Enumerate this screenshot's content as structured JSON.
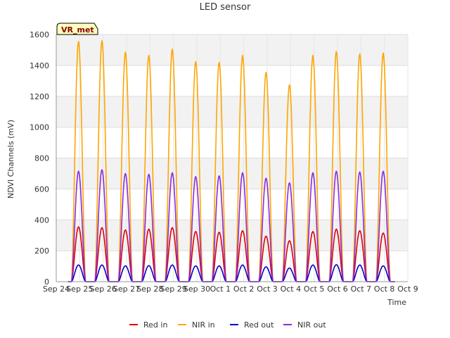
{
  "chart_data": {
    "type": "line",
    "title": "LED sensor",
    "xlabel": "Time",
    "ylabel": "NDVI Channels (mV)",
    "ylim": [
      0,
      1600
    ],
    "yticks": [
      0,
      200,
      400,
      600,
      800,
      1000,
      1200,
      1400,
      1600
    ],
    "xticks": [
      "Sep 24",
      "Sep 25",
      "Sep 26",
      "Sep 27",
      "Sep 28",
      "Sep 29",
      "Sep 30",
      "Oct 1",
      "Oct 2",
      "Oct 3",
      "Oct 4",
      "Oct 5",
      "Oct 6",
      "Oct 7",
      "Oct 8",
      "Oct 9"
    ],
    "xlim": [
      "2024-09-24",
      "2024-10-09"
    ],
    "grid": true,
    "legend_position": "bottom",
    "badge": "VR_met",
    "peak_dates": [
      "2024-09-25",
      "2024-09-26",
      "2024-09-27",
      "2024-09-28",
      "2024-09-29",
      "2024-09-30",
      "2024-10-01",
      "2024-10-02",
      "2024-10-03",
      "2024-10-04",
      "2024-10-05",
      "2024-10-06",
      "2024-10-07",
      "2024-10-08"
    ],
    "series": [
      {
        "name": "Red in",
        "color": "#dd0000",
        "peaks": [
          355,
          350,
          335,
          340,
          350,
          325,
          320,
          330,
          295,
          265,
          325,
          340,
          330,
          315
        ]
      },
      {
        "name": "NIR in",
        "color": "#ffa500",
        "peaks": [
          1555,
          1560,
          1485,
          1465,
          1505,
          1425,
          1420,
          1465,
          1355,
          1275,
          1465,
          1490,
          1475,
          1480
        ]
      },
      {
        "name": "Red out",
        "color": "#0000cc",
        "peaks": [
          108,
          108,
          102,
          104,
          108,
          102,
          102,
          108,
          96,
          88,
          108,
          110,
          108,
          102
        ]
      },
      {
        "name": "NIR out",
        "color": "#8a2be2",
        "peaks": [
          715,
          725,
          700,
          695,
          705,
          680,
          685,
          705,
          670,
          640,
          705,
          715,
          710,
          715
        ]
      }
    ]
  }
}
